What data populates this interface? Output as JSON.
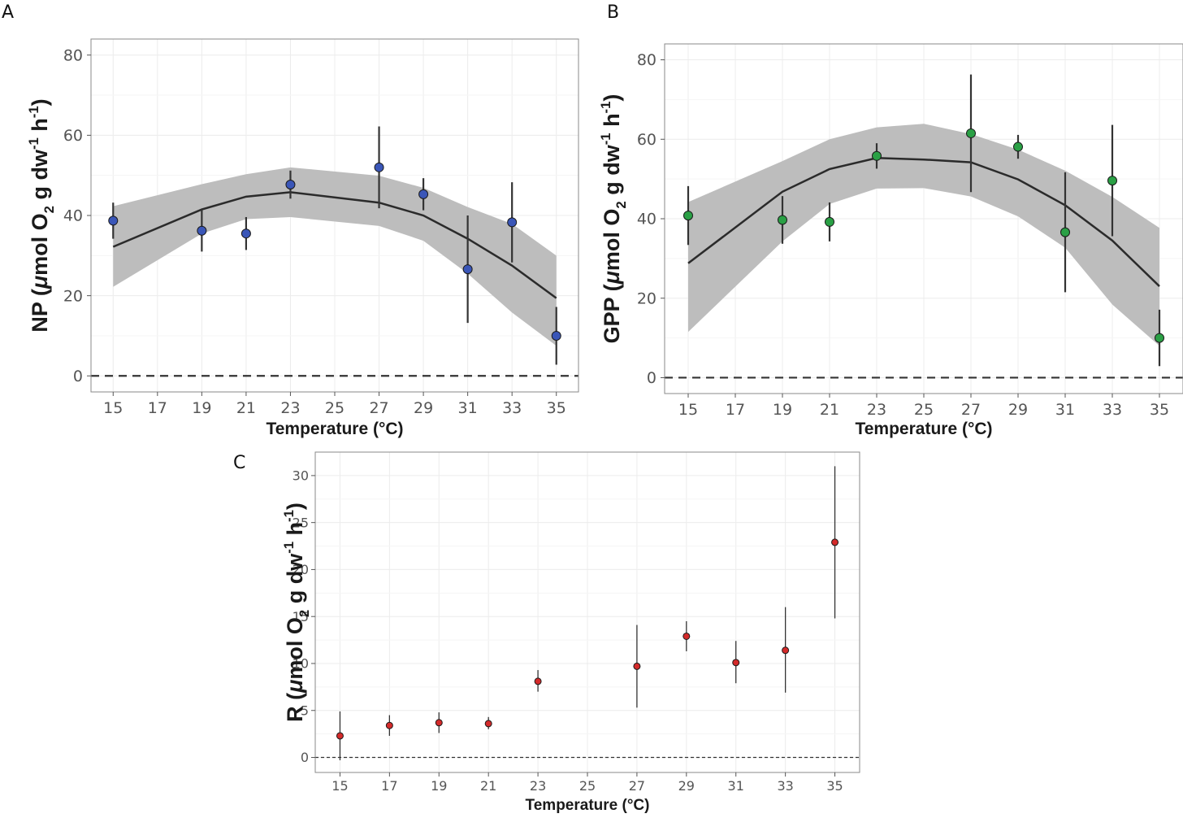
{
  "chart_data": [
    {
      "panel": "A",
      "type": "line",
      "panel_label": "A",
      "xlabel": "Temperature (°C)",
      "ylabel_main": "NP (",
      "ylabel_mu": "μ",
      "ylabel_mol": "mol O",
      "ylabel_sub2": "2",
      "ylabel_gdw": " g dw",
      "ylabel_sup1": "-1",
      "ylabel_h": " h",
      "ylabel_sup2": "-1",
      "ylabel_close": ")",
      "xticks": [
        "15",
        "17",
        "19",
        "21",
        "23",
        "25",
        "27",
        "29",
        "31",
        "33",
        "35"
      ],
      "yticks": [
        "0",
        "20",
        "40",
        "60",
        "80"
      ],
      "xlim": [
        14,
        36
      ],
      "ylim": [
        -4,
        84
      ],
      "point_color": "#3a56b8",
      "points": [
        {
          "x": 15,
          "y": 38.7,
          "lo": 34.2,
          "hi": 43.2
        },
        {
          "x": 19,
          "y": 36.2,
          "lo": 31.0,
          "hi": 41.4
        },
        {
          "x": 21,
          "y": 35.5,
          "lo": 31.4,
          "hi": 39.6
        },
        {
          "x": 23,
          "y": 47.7,
          "lo": 44.2,
          "hi": 51.2
        },
        {
          "x": 27,
          "y": 52.0,
          "lo": 41.8,
          "hi": 62.2
        },
        {
          "x": 29,
          "y": 45.3,
          "lo": 41.3,
          "hi": 49.3
        },
        {
          "x": 31,
          "y": 26.6,
          "lo": 13.2,
          "hi": 40.0
        },
        {
          "x": 33,
          "y": 38.3,
          "lo": 28.3,
          "hi": 48.3
        },
        {
          "x": 35,
          "y": 10.0,
          "lo": 2.8,
          "hi": 17.2
        }
      ],
      "fit": [
        {
          "x": 15,
          "y": 32.2,
          "lo": 22.2,
          "hi": 42.3
        },
        {
          "x": 19,
          "y": 41.5,
          "lo": 35.5,
          "hi": 47.8
        },
        {
          "x": 21,
          "y": 44.7,
          "lo": 39.1,
          "hi": 50.3
        },
        {
          "x": 23,
          "y": 45.8,
          "lo": 39.6,
          "hi": 52.0
        },
        {
          "x": 27,
          "y": 43.2,
          "lo": 37.4,
          "hi": 49.9
        },
        {
          "x": 29,
          "y": 40.0,
          "lo": 33.7,
          "hi": 46.9
        },
        {
          "x": 31,
          "y": 34.2,
          "lo": 25.5,
          "hi": 42.1
        },
        {
          "x": 33,
          "y": 27.5,
          "lo": 15.8,
          "hi": 37.9
        },
        {
          "x": 35,
          "y": 19.4,
          "lo": 7.5,
          "hi": 30.0
        }
      ]
    },
    {
      "panel": "B",
      "type": "line",
      "panel_label": "B",
      "xlabel": "Temperature (°C)",
      "ylabel_main": "GPP (",
      "ylabel_mu": "μ",
      "ylabel_mol": "mol O",
      "ylabel_sub2": "2",
      "ylabel_gdw": " g dw",
      "ylabel_sup1": "-1",
      "ylabel_h": " h",
      "ylabel_sup2": "-1",
      "ylabel_close": ")",
      "xticks": [
        "15",
        "17",
        "19",
        "21",
        "23",
        "25",
        "27",
        "29",
        "31",
        "33",
        "35"
      ],
      "yticks": [
        "0",
        "20",
        "40",
        "60",
        "80"
      ],
      "xlim": [
        14,
        36
      ],
      "ylim": [
        -4,
        84
      ],
      "point_color": "#2aa045",
      "points": [
        {
          "x": 15,
          "y": 40.8,
          "lo": 33.4,
          "hi": 48.2
        },
        {
          "x": 19,
          "y": 39.7,
          "lo": 33.7,
          "hi": 45.7
        },
        {
          "x": 21,
          "y": 39.2,
          "lo": 34.3,
          "hi": 44.1
        },
        {
          "x": 23,
          "y": 55.8,
          "lo": 52.6,
          "hi": 59.0
        },
        {
          "x": 27,
          "y": 61.5,
          "lo": 46.7,
          "hi": 76.3
        },
        {
          "x": 29,
          "y": 58.1,
          "lo": 55.1,
          "hi": 61.1
        },
        {
          "x": 31,
          "y": 36.6,
          "lo": 21.5,
          "hi": 51.7
        },
        {
          "x": 33,
          "y": 49.6,
          "lo": 35.6,
          "hi": 63.6
        },
        {
          "x": 35,
          "y": 10.0,
          "lo": 2.9,
          "hi": 17.1
        }
      ],
      "fit": [
        {
          "x": 15,
          "y": 28.8,
          "lo": 11.5,
          "hi": 44.2
        },
        {
          "x": 19,
          "y": 46.8,
          "lo": 34.3,
          "hi": 54.5
        },
        {
          "x": 21,
          "y": 52.5,
          "lo": 43.7,
          "hi": 60.0
        },
        {
          "x": 23,
          "y": 55.3,
          "lo": 47.6,
          "hi": 63.0
        },
        {
          "x": 25,
          "y": 54.9,
          "lo": 47.7,
          "hi": 63.9
        },
        {
          "x": 27,
          "y": 54.2,
          "lo": 45.6,
          "hi": 61.3
        },
        {
          "x": 29,
          "y": 49.9,
          "lo": 40.6,
          "hi": 57.4
        },
        {
          "x": 31,
          "y": 43.4,
          "lo": 32.7,
          "hi": 52.1
        },
        {
          "x": 33,
          "y": 34.5,
          "lo": 18.4,
          "hi": 45.5
        },
        {
          "x": 35,
          "y": 23.0,
          "lo": 8.0,
          "hi": 37.7
        }
      ]
    },
    {
      "panel": "C",
      "type": "scatter",
      "panel_label": "C",
      "xlabel": "Temperature (°C)",
      "ylabel_main": "R (",
      "ylabel_mu": "μ",
      "ylabel_mol": "mol O",
      "ylabel_sub2": "2",
      "ylabel_gdw": " g dw",
      "ylabel_sup1": "-1",
      "ylabel_h": " h",
      "ylabel_sup2": "-1",
      "ylabel_close": ")",
      "xticks": [
        "15",
        "17",
        "19",
        "21",
        "23",
        "25",
        "27",
        "29",
        "31",
        "33",
        "35"
      ],
      "yticks": [
        "0",
        "5",
        "10",
        "15",
        "20",
        "25",
        "30"
      ],
      "xlim": [
        14,
        36
      ],
      "ylim": [
        -1.6,
        32.5
      ],
      "point_color": "#d42a2a",
      "points": [
        {
          "x": 15,
          "y": 2.3,
          "lo": -0.3,
          "hi": 4.9
        },
        {
          "x": 17,
          "y": 3.4,
          "lo": 2.3,
          "hi": 4.5
        },
        {
          "x": 19,
          "y": 3.7,
          "lo": 2.6,
          "hi": 4.8
        },
        {
          "x": 21,
          "y": 3.6,
          "lo": 3.0,
          "hi": 4.3
        },
        {
          "x": 23,
          "y": 8.1,
          "lo": 7.0,
          "hi": 9.3
        },
        {
          "x": 27,
          "y": 9.7,
          "lo": 5.3,
          "hi": 14.1
        },
        {
          "x": 29,
          "y": 12.9,
          "lo": 11.3,
          "hi": 14.5
        },
        {
          "x": 31,
          "y": 10.1,
          "lo": 7.9,
          "hi": 12.4
        },
        {
          "x": 33,
          "y": 11.4,
          "lo": 6.9,
          "hi": 16.0
        },
        {
          "x": 35,
          "y": 22.9,
          "lo": 14.8,
          "hi": 31.0
        }
      ]
    }
  ]
}
